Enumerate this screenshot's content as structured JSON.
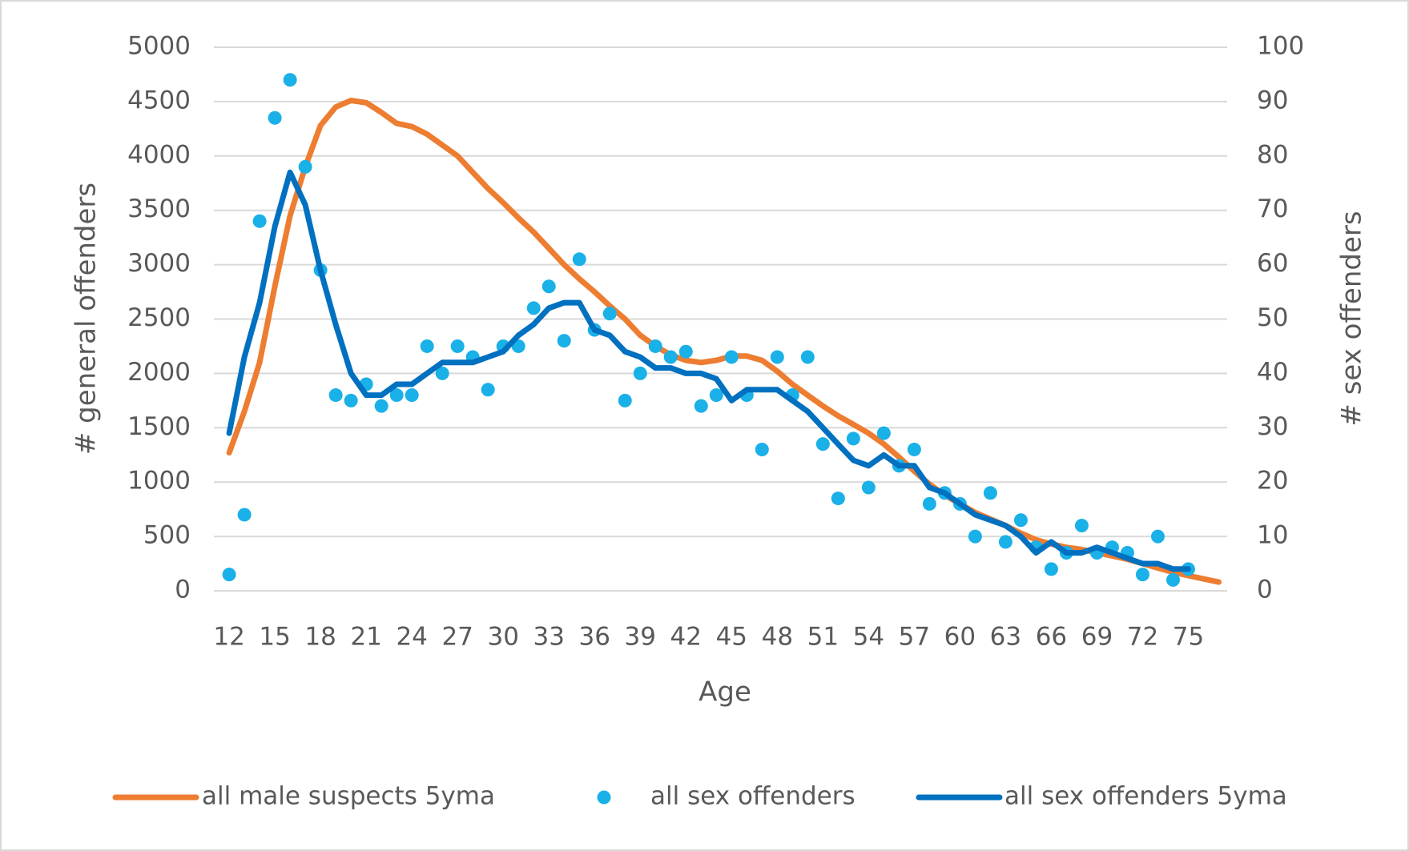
{
  "chart_data": {
    "type": "line",
    "x_label": "Age",
    "y_label": "# general offenders",
    "y2_label": "# sex  offenders",
    "x": [
      12,
      13,
      14,
      15,
      16,
      17,
      18,
      19,
      20,
      21,
      22,
      23,
      24,
      25,
      26,
      27,
      28,
      29,
      30,
      31,
      32,
      33,
      34,
      35,
      36,
      37,
      38,
      39,
      40,
      41,
      42,
      43,
      44,
      45,
      46,
      47,
      48,
      49,
      50,
      51,
      52,
      53,
      54,
      55,
      56,
      57,
      58,
      59,
      60,
      61,
      62,
      63,
      64,
      65,
      66,
      67,
      68,
      69,
      70,
      71,
      72,
      73,
      74,
      75,
      76,
      77
    ],
    "xlim": [
      11.5,
      77.5
    ],
    "xticks": [
      12,
      15,
      18,
      21,
      24,
      27,
      30,
      33,
      36,
      39,
      42,
      45,
      48,
      51,
      54,
      57,
      60,
      63,
      66,
      69,
      72,
      75
    ],
    "ylim": [
      0,
      5000
    ],
    "yticks": [
      0,
      500,
      1000,
      1500,
      2000,
      2500,
      3000,
      3500,
      4000,
      4500,
      5000
    ],
    "y2lim": [
      0,
      100
    ],
    "y2ticks": [
      0,
      10,
      20,
      30,
      40,
      50,
      60,
      70,
      80,
      90,
      100
    ],
    "grid": true,
    "legend": "bottom",
    "series": [
      {
        "name": "all male suspects 5yma",
        "color": "#ed7d31",
        "style": "line",
        "values": [
          1270,
          1650,
          2100,
          2800,
          3450,
          3900,
          4280,
          4450,
          4510,
          4490,
          4400,
          4300,
          4270,
          4200,
          4100,
          4000,
          3850,
          3700,
          3570,
          3430,
          3300,
          3150,
          3000,
          2870,
          2750,
          2620,
          2500,
          2350,
          2250,
          2170,
          2120,
          2100,
          2120,
          2160,
          2160,
          2120,
          2020,
          1900,
          1800,
          1700,
          1610,
          1530,
          1450,
          1350,
          1230,
          1100,
          980,
          880,
          800,
          720,
          660,
          600,
          530,
          470,
          430,
          400,
          380,
          350,
          320,
          290,
          250,
          210,
          170,
          140,
          110,
          80
        ]
      },
      {
        "name": "all sex offenders",
        "color": "#1ab0e8",
        "style": "dots",
        "axis": "y2",
        "values": [
          3,
          14,
          68,
          87,
          94,
          78,
          59,
          36,
          35,
          38,
          34,
          36,
          36,
          45,
          40,
          45,
          43,
          37,
          45,
          45,
          52,
          56,
          46,
          61,
          48,
          51,
          35,
          40,
          45,
          43,
          44,
          34,
          36,
          43,
          36,
          26,
          43,
          36,
          43,
          27,
          17,
          28,
          19,
          29,
          23,
          26,
          16,
          18,
          16,
          10,
          18,
          9,
          13,
          8,
          4,
          7,
          12,
          7,
          8,
          7,
          3,
          10,
          2,
          4,
          null,
          null
        ]
      },
      {
        "name": "all sex offenders 5yma",
        "color": "#0070c0",
        "style": "line",
        "axis": "y2",
        "values": [
          29,
          43,
          53,
          67,
          77,
          71,
          59,
          49,
          40,
          36,
          36,
          38,
          38,
          40,
          42,
          42,
          42,
          43,
          44,
          47,
          49,
          52,
          53,
          53,
          48,
          47,
          44,
          43,
          41,
          41,
          40,
          40,
          39,
          35,
          37,
          37,
          37,
          35,
          33,
          30,
          27,
          24,
          23,
          25,
          23,
          23,
          19,
          18,
          16,
          14,
          13,
          12,
          10,
          7,
          9,
          7,
          7,
          8,
          7,
          6,
          5,
          5,
          4,
          4,
          null,
          null
        ]
      }
    ]
  }
}
